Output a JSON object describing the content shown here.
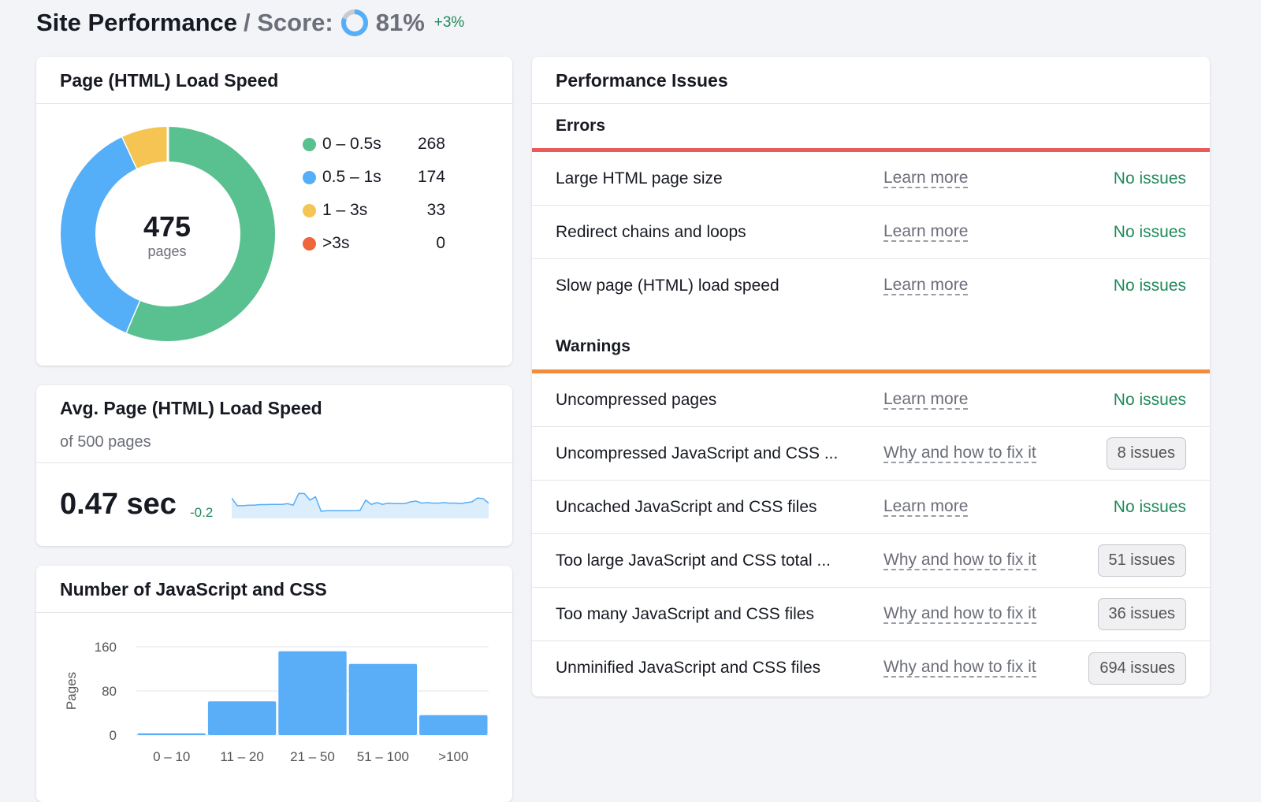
{
  "header": {
    "title": "Site Performance",
    "separator": "/ Score:",
    "score": "81%",
    "score_value": 81,
    "delta": "+3%",
    "colors": {
      "score": "#55aef8",
      "rest": "#c8cbd2"
    }
  },
  "load_speed": {
    "title": "Page (HTML) Load Speed",
    "total": "475",
    "total_label": "pages",
    "segments": [
      {
        "label": "0 – 0.5s",
        "value": 268,
        "color": "#59c08f"
      },
      {
        "label": "0.5 – 1s",
        "value": 174,
        "color": "#55aef8"
      },
      {
        "label": "1 – 3s",
        "value": 33,
        "color": "#f5c452"
      },
      {
        "label": ">3s",
        "value": 0,
        "color": "#f0643c"
      }
    ]
  },
  "avg_speed": {
    "title": "Avg. Page (HTML) Load Speed",
    "subtitle": "of 500 pages",
    "value": "0.47 sec",
    "delta": "-0.2",
    "sparkline": [
      0.8,
      0.5,
      0.5,
      0.52,
      0.52,
      0.54,
      0.54,
      0.55,
      0.55,
      0.55,
      0.58,
      0.52,
      0.98,
      0.98,
      0.72,
      0.85,
      0.28,
      0.3,
      0.3,
      0.3,
      0.3,
      0.3,
      0.3,
      0.32,
      0.72,
      0.55,
      0.62,
      0.55,
      0.6,
      0.58,
      0.58,
      0.58,
      0.65,
      0.68,
      0.6,
      0.62,
      0.6,
      0.6,
      0.62,
      0.6,
      0.6,
      0.58,
      0.62,
      0.65,
      0.8,
      0.78,
      0.6
    ]
  },
  "js_css": {
    "title": "Number of JavaScript and CSS"
  },
  "chart_data": {
    "type": "bar",
    "categories": [
      "0 – 10",
      "11 – 20",
      "21 – 50",
      "51 – 100",
      ">100"
    ],
    "values": [
      3,
      61,
      152,
      129,
      36
    ],
    "ylabel": "Pages",
    "yticks": [
      "0",
      "80",
      "160"
    ],
    "ylim": [
      0,
      160
    ],
    "grid": true,
    "color": "#5aaef8"
  },
  "issues": {
    "title": "Performance Issues",
    "errors": {
      "label": "Errors",
      "color": "#ea5a5a",
      "rows": [
        {
          "name": "Large HTML page size",
          "link": "Learn more",
          "status": "No issues"
        },
        {
          "name": "Redirect chains and loops",
          "link": "Learn more",
          "status": "No issues"
        },
        {
          "name": "Slow page (HTML) load speed",
          "link": "Learn more",
          "status": "No issues"
        }
      ]
    },
    "warnings": {
      "label": "Warnings",
      "color": "#f08c3c",
      "rows": [
        {
          "name": "Uncompressed pages",
          "link": "Learn more",
          "status": "No issues"
        },
        {
          "name": "Uncompressed JavaScript and CSS ...",
          "link": "Why and how to fix it",
          "badge": "8 issues"
        },
        {
          "name": "Uncached JavaScript and CSS files",
          "link": "Learn more",
          "status": "No issues"
        },
        {
          "name": "Too large JavaScript and CSS total ...",
          "link": "Why and how to fix it",
          "badge": "51 issues"
        },
        {
          "name": "Too many JavaScript and CSS files",
          "link": "Why and how to fix it",
          "badge": "36 issues"
        },
        {
          "name": "Unminified JavaScript and CSS files",
          "link": "Why and how to fix it",
          "badge": "694 issues"
        }
      ]
    }
  }
}
